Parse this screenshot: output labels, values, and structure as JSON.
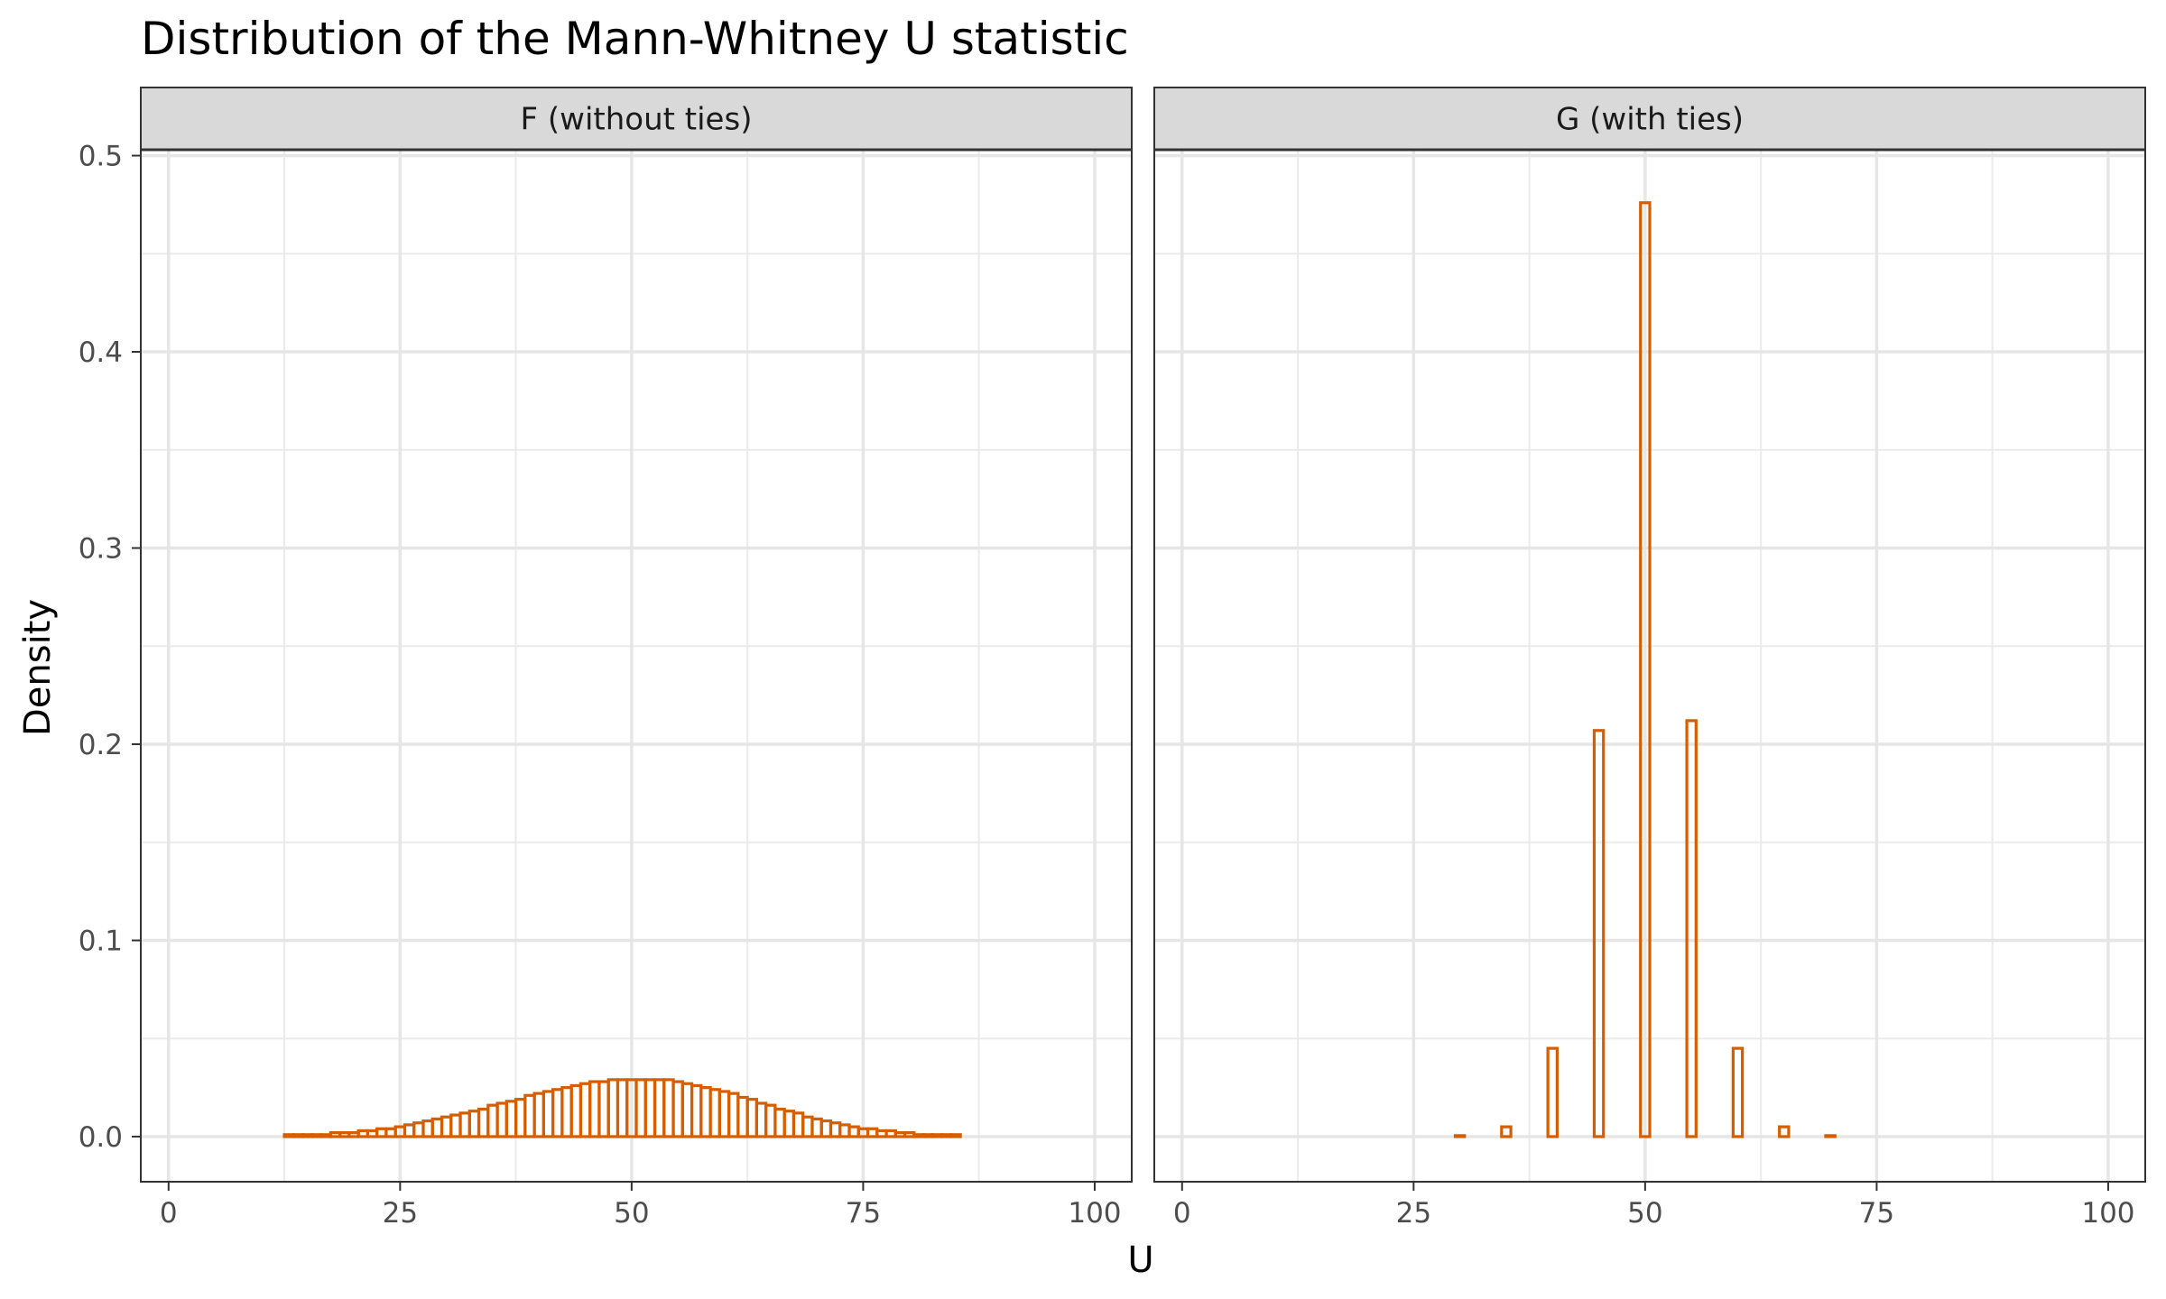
{
  "chart_data": {
    "type": "bar",
    "title": "Distribution of the Mann-Whitney U statistic",
    "xlabel": "U",
    "ylabel": "Density",
    "xlim": [
      -3,
      104
    ],
    "ylim": [
      -0.023,
      0.503
    ],
    "x_ticks": [
      0,
      25,
      50,
      75,
      100
    ],
    "x_tick_labels": [
      "0",
      "25",
      "50",
      "75",
      "100"
    ],
    "y_ticks": [
      0.0,
      0.1,
      0.2,
      0.3,
      0.4,
      0.5
    ],
    "y_tick_labels": [
      "0.0",
      "0.1",
      "0.2",
      "0.3",
      "0.4",
      "0.5"
    ],
    "bar_color": "#D55E00",
    "grid": true,
    "panels": [
      {
        "strip_label": "F (without ties)",
        "bin_width": 1,
        "x": [
          2,
          3,
          4,
          5,
          6,
          7,
          8,
          9,
          10,
          11,
          12,
          13,
          14,
          15,
          16,
          17,
          18,
          19,
          20,
          21,
          22,
          23,
          24,
          25,
          26,
          27,
          28,
          29,
          30,
          31,
          32,
          33,
          34,
          35,
          36,
          37,
          38,
          39,
          40,
          41,
          42,
          43,
          44,
          45,
          46,
          47,
          48,
          49,
          50,
          51,
          52,
          53,
          54,
          55,
          56,
          57,
          58,
          59,
          60,
          61,
          62,
          63,
          64,
          65,
          66,
          67,
          68,
          69,
          70,
          71,
          72,
          73,
          74,
          75,
          76,
          77,
          78,
          79,
          80,
          81,
          82,
          83,
          84,
          85,
          86,
          87,
          88,
          89,
          90,
          91,
          92,
          93,
          94,
          95,
          96,
          97,
          98
        ],
        "values": [
          0.0,
          0.0,
          0.0,
          0.0,
          0.0,
          0.0,
          0.0,
          0.0,
          0.0,
          0.0,
          0.0,
          0.001,
          0.001,
          0.001,
          0.001,
          0.001,
          0.002,
          0.002,
          0.002,
          0.003,
          0.003,
          0.004,
          0.004,
          0.005,
          0.006,
          0.007,
          0.008,
          0.009,
          0.01,
          0.011,
          0.012,
          0.013,
          0.014,
          0.016,
          0.017,
          0.018,
          0.019,
          0.021,
          0.022,
          0.023,
          0.024,
          0.025,
          0.026,
          0.027,
          0.028,
          0.028,
          0.029,
          0.029,
          0.029,
          0.029,
          0.029,
          0.029,
          0.029,
          0.028,
          0.027,
          0.026,
          0.025,
          0.024,
          0.023,
          0.022,
          0.02,
          0.019,
          0.017,
          0.016,
          0.014,
          0.013,
          0.012,
          0.01,
          0.009,
          0.008,
          0.007,
          0.006,
          0.005,
          0.004,
          0.004,
          0.003,
          0.003,
          0.002,
          0.002,
          0.001,
          0.001,
          0.001,
          0.001,
          0.001,
          0.0,
          0.0,
          0.0,
          0.0,
          0.0,
          0.0,
          0.0,
          0.0,
          0.0,
          0.0,
          0.0,
          0.0,
          0.0
        ]
      },
      {
        "strip_label": "G (with ties)",
        "bin_width": 1,
        "x": [
          2,
          3,
          4,
          5,
          6,
          7,
          8,
          9,
          10,
          11,
          12,
          13,
          14,
          15,
          16,
          17,
          18,
          19,
          20,
          21,
          22,
          23,
          24,
          25,
          26,
          27,
          28,
          29,
          30,
          31,
          32,
          33,
          34,
          35,
          36,
          37,
          38,
          39,
          40,
          41,
          42,
          43,
          44,
          45,
          46,
          47,
          48,
          49,
          50,
          51,
          52,
          53,
          54,
          55,
          56,
          57,
          58,
          59,
          60,
          61,
          62,
          63,
          64,
          65,
          66,
          67,
          68,
          69,
          70,
          71,
          72,
          73,
          74,
          75,
          76,
          77,
          78,
          79,
          80,
          81,
          82,
          83,
          84,
          85,
          86,
          87,
          88,
          89,
          90,
          91,
          92,
          93,
          94,
          95,
          96,
          97,
          98
        ],
        "values": [
          0.0,
          0.0,
          0.0,
          0.0,
          0.0,
          0.0,
          0.0,
          0.0,
          0.0,
          0.0,
          0.0,
          0.0,
          0.0,
          0.0,
          0.0,
          0.0,
          0.0,
          0.0,
          0.0,
          0.0,
          0.0,
          0.0,
          0.0,
          0.0,
          0.0,
          0.0,
          0.0,
          0.0,
          0.0005,
          0.0,
          0.0,
          0.0,
          0.0,
          0.005,
          0.0,
          0.0,
          0.0,
          0.0,
          0.045,
          0.0,
          0.0,
          0.0,
          0.0,
          0.207,
          0.0,
          0.0,
          0.0,
          0.0,
          0.476,
          0.0,
          0.0,
          0.0,
          0.0,
          0.212,
          0.0,
          0.0,
          0.0,
          0.0,
          0.045,
          0.0,
          0.0,
          0.0,
          0.0,
          0.005,
          0.0,
          0.0,
          0.0,
          0.0,
          0.0005,
          0.0,
          0.0,
          0.0,
          0.0,
          0.0,
          0.0,
          0.0,
          0.0,
          0.0,
          0.0,
          0.0,
          0.0,
          0.0,
          0.0,
          0.0,
          0.0,
          0.0,
          0.0,
          0.0,
          0.0,
          0.0,
          0.0,
          0.0,
          0.0,
          0.0,
          0.0,
          0.0,
          0.0
        ]
      }
    ]
  }
}
